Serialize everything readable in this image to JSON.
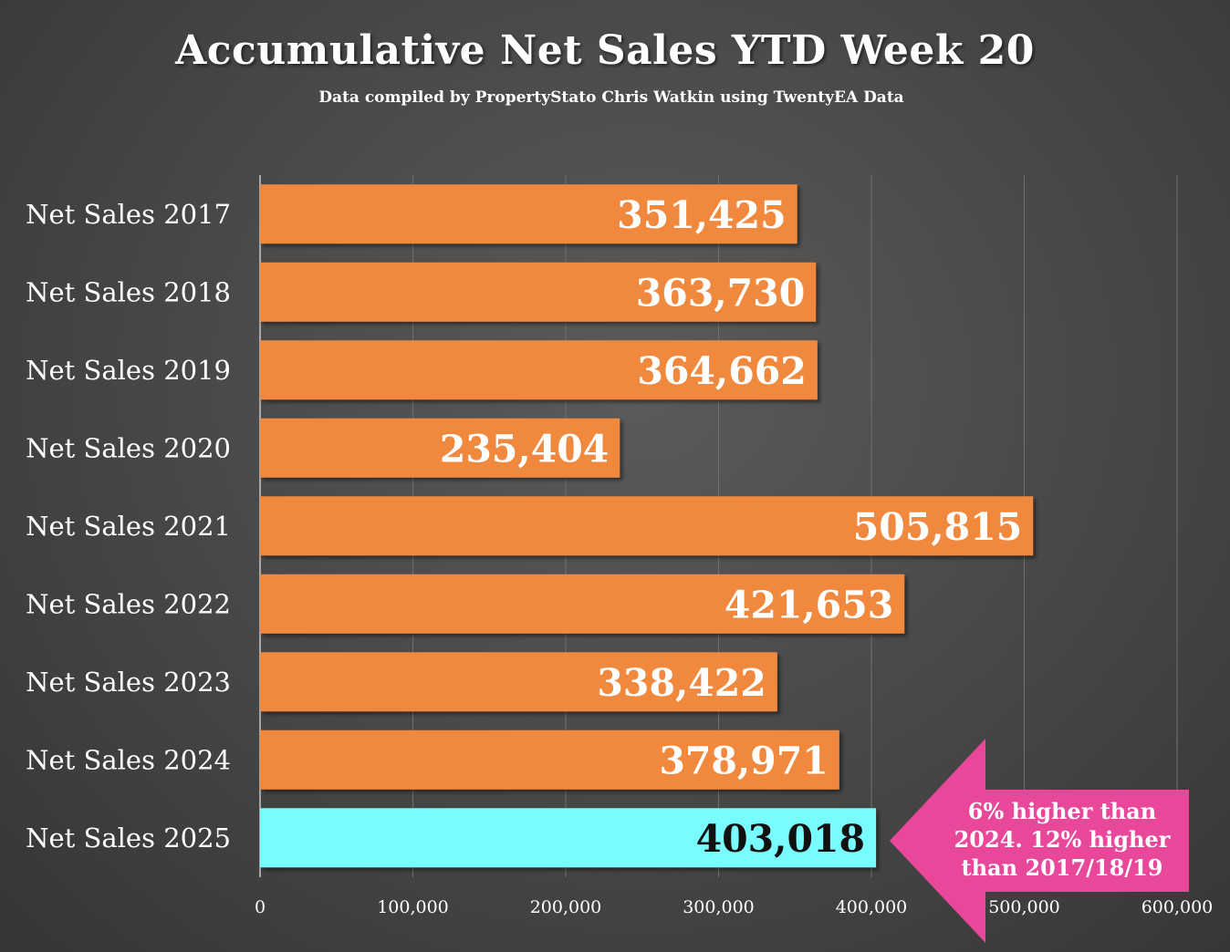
{
  "chart_data": {
    "type": "bar",
    "orientation": "horizontal",
    "title": "Accumulative Net Sales YTD Week 20",
    "subtitle": "Data compiled by PropertyStato Chris Watkin using TwentyEA Data",
    "categories": [
      "Net Sales 2017",
      "Net Sales 2018",
      "Net Sales 2019",
      "Net Sales 2020",
      "Net Sales 2021",
      "Net Sales 2022",
      "Net Sales 2023",
      "Net Sales 2024",
      "Net Sales 2025"
    ],
    "values": [
      351425,
      363730,
      364662,
      235404,
      505815,
      421653,
      338422,
      378971,
      403018
    ],
    "value_labels": [
      "351,425",
      "363,730",
      "364,662",
      "235,404",
      "505,815",
      "421,653",
      "338,422",
      "378,971",
      "403,018"
    ],
    "xlim": [
      0,
      600000
    ],
    "xticks": [
      0,
      100000,
      200000,
      300000,
      400000,
      500000,
      600000
    ],
    "xtick_labels": [
      "0",
      "100,000",
      "200,000",
      "300,000",
      "400,000",
      "500,000",
      "600,000"
    ],
    "grid": true,
    "legend": "none",
    "highlight_index": 8,
    "colors": {
      "bar": "#f0883c",
      "highlight_bar": "#79fcff",
      "label_default": "#ffffff",
      "label_highlight": "#111111",
      "callout": "#e8479a"
    },
    "annotation": {
      "text_lines": [
        "6% higher than",
        "2024. 12% higher",
        "than 2017/18/19"
      ],
      "points_to": "Net Sales 2025"
    }
  }
}
